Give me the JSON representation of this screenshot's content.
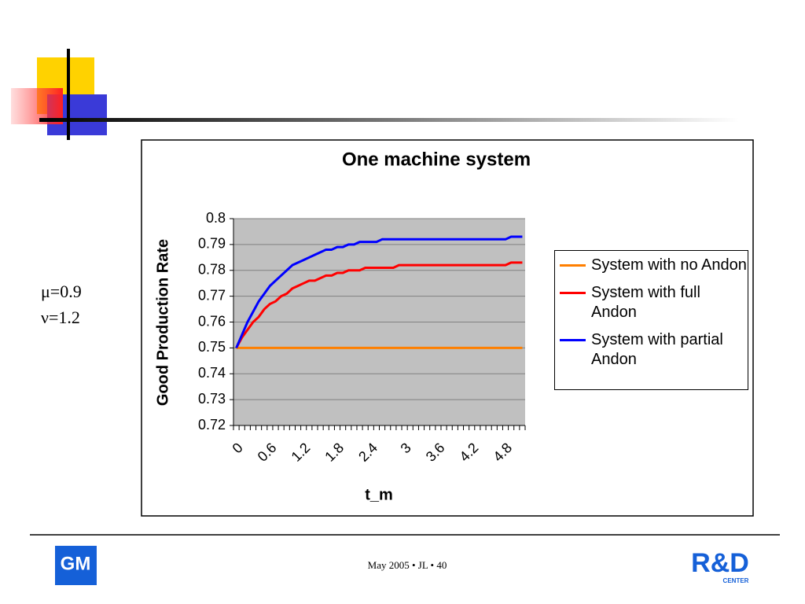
{
  "chart_data": {
    "type": "line",
    "title": "One machine system",
    "x_label": "t_m",
    "y_label": "Good Production Rate",
    "categories": [
      "0",
      null,
      null,
      null,
      null,
      null,
      "0.6",
      null,
      null,
      null,
      null,
      null,
      "1.2",
      null,
      null,
      null,
      null,
      null,
      "1.8",
      null,
      null,
      null,
      null,
      null,
      "2.4",
      null,
      null,
      null,
      null,
      null,
      "3",
      null,
      null,
      null,
      null,
      null,
      "3.6",
      null,
      null,
      null,
      null,
      null,
      "4.2",
      null,
      null,
      null,
      null,
      null,
      "4.8",
      null,
      null,
      null
    ],
    "series": [
      {
        "name": "System with no Andon",
        "color": "#ff7f00",
        "values": [
          0.75,
          0.75,
          0.75,
          0.75,
          0.75,
          0.75,
          0.75,
          0.75,
          0.75,
          0.75,
          0.75,
          0.75,
          0.75,
          0.75,
          0.75,
          0.75,
          0.75,
          0.75,
          0.75,
          0.75,
          0.75,
          0.75,
          0.75,
          0.75,
          0.75,
          0.75,
          0.75,
          0.75,
          0.75,
          0.75,
          0.75,
          0.75,
          0.75,
          0.75,
          0.75,
          0.75,
          0.75,
          0.75,
          0.75,
          0.75,
          0.75,
          0.75,
          0.75,
          0.75,
          0.75,
          0.75,
          0.75,
          0.75,
          0.75,
          0.75,
          0.75,
          0.75
        ]
      },
      {
        "name": "System with full Andon",
        "color": "#ff0000",
        "values": [
          0.75,
          0.754,
          0.757,
          0.76,
          0.762,
          0.765,
          0.767,
          0.768,
          0.77,
          0.771,
          0.773,
          0.774,
          0.775,
          0.776,
          0.776,
          0.777,
          0.778,
          0.778,
          0.779,
          0.779,
          0.78,
          0.78,
          0.78,
          0.781,
          0.781,
          0.781,
          0.781,
          0.781,
          0.781,
          0.782,
          0.782,
          0.782,
          0.782,
          0.782,
          0.782,
          0.782,
          0.782,
          0.782,
          0.782,
          0.782,
          0.782,
          0.782,
          0.782,
          0.782,
          0.782,
          0.782,
          0.782,
          0.782,
          0.782,
          0.783,
          0.783,
          0.783
        ]
      },
      {
        "name": "System with partial Andon",
        "color": "#0000ff",
        "values": [
          0.75,
          0.755,
          0.76,
          0.764,
          0.768,
          0.771,
          0.774,
          0.776,
          0.778,
          0.78,
          0.782,
          0.783,
          0.784,
          0.785,
          0.786,
          0.787,
          0.788,
          0.788,
          0.789,
          0.789,
          0.79,
          0.79,
          0.791,
          0.791,
          0.791,
          0.791,
          0.792,
          0.792,
          0.792,
          0.792,
          0.792,
          0.792,
          0.792,
          0.792,
          0.792,
          0.792,
          0.792,
          0.792,
          0.792,
          0.792,
          0.792,
          0.792,
          0.792,
          0.792,
          0.792,
          0.792,
          0.792,
          0.792,
          0.792,
          0.793,
          0.793,
          0.793
        ]
      }
    ],
    "ylim": [
      0.72,
      0.8
    ],
    "yticks": [
      0.72,
      0.73,
      0.74,
      0.75,
      0.76,
      0.77,
      0.78,
      0.79,
      0.8
    ],
    "grid": true,
    "legend": "right"
  },
  "slide": {
    "params": [
      "μ=0.9",
      "ν=1.2"
    ],
    "footer": "May 2005 • JL • 40",
    "logo_left": "GM",
    "logo_right": "R&D",
    "logo_right_sub": "CENTER"
  }
}
